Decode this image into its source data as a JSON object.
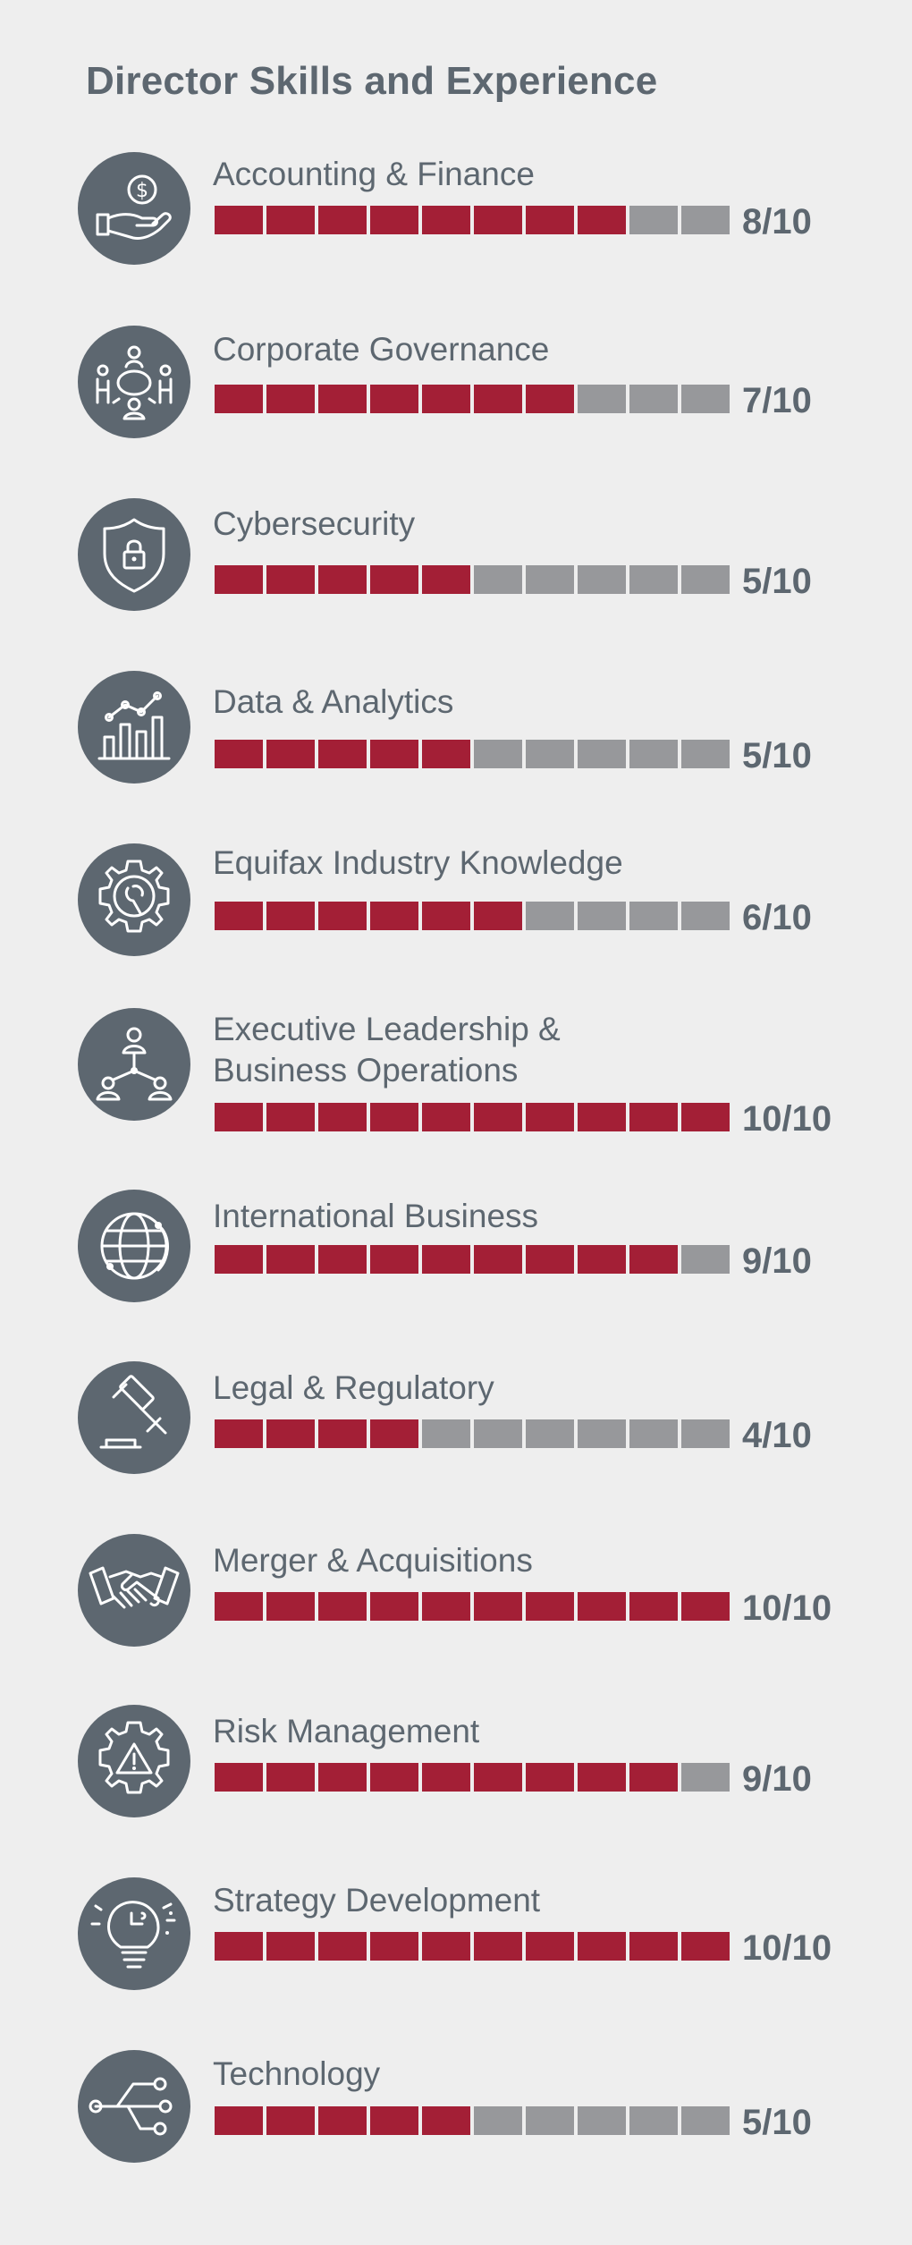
{
  "title": "Director Skills and Experience",
  "colors": {
    "background": "#eeeeee",
    "icon_circle": "#5d6770",
    "text": "#5d6770",
    "filled_segment": "#a31f36",
    "empty_segment": "#97989b"
  },
  "chart_data": {
    "type": "bar",
    "title": "Director Skills and Experience",
    "max": 10,
    "categories": [
      "Accounting & Finance",
      "Corporate Governance",
      "Cybersecurity",
      "Data & Analytics",
      "Equifax Industry Knowledge",
      "Executive Leadership & Business Operations",
      "International Business",
      "Legal & Regulatory",
      "Merger & Acquisitions",
      "Risk Management",
      "Strategy Development",
      "Technology"
    ],
    "values": [
      8,
      7,
      5,
      5,
      6,
      10,
      9,
      4,
      10,
      9,
      10,
      5
    ]
  },
  "skills": [
    {
      "label": "Accounting & Finance",
      "score_text": "8/10",
      "value": 8,
      "icon": "hand-dollar-icon"
    },
    {
      "label": "Corporate Governance",
      "score_text": "7/10",
      "value": 7,
      "icon": "meeting-table-icon"
    },
    {
      "label": "Cybersecurity",
      "score_text": "5/10",
      "value": 5,
      "icon": "shield-lock-icon"
    },
    {
      "label": "Data & Analytics",
      "score_text": "5/10",
      "value": 5,
      "icon": "bar-chart-icon"
    },
    {
      "label": "Equifax Industry Knowledge",
      "score_text": "6/10",
      "value": 6,
      "icon": "gear-wrench-icon"
    },
    {
      "label": "Executive Leadership &",
      "label_line2": "Business Operations",
      "score_text": "10/10",
      "value": 10,
      "icon": "org-chart-icon"
    },
    {
      "label": "International Business",
      "score_text": "9/10",
      "value": 9,
      "icon": "globe-icon"
    },
    {
      "label": "Legal & Regulatory",
      "score_text": "4/10",
      "value": 4,
      "icon": "gavel-icon"
    },
    {
      "label": "Merger & Acquisitions",
      "score_text": "10/10",
      "value": 10,
      "icon": "handshake-icon"
    },
    {
      "label": "Risk Management",
      "score_text": "9/10",
      "value": 9,
      "icon": "gear-warning-icon"
    },
    {
      "label": "Strategy Development",
      "score_text": "10/10",
      "value": 10,
      "icon": "lightbulb-puzzle-icon"
    },
    {
      "label": "Technology",
      "score_text": "5/10",
      "value": 5,
      "icon": "usb-icon"
    }
  ]
}
